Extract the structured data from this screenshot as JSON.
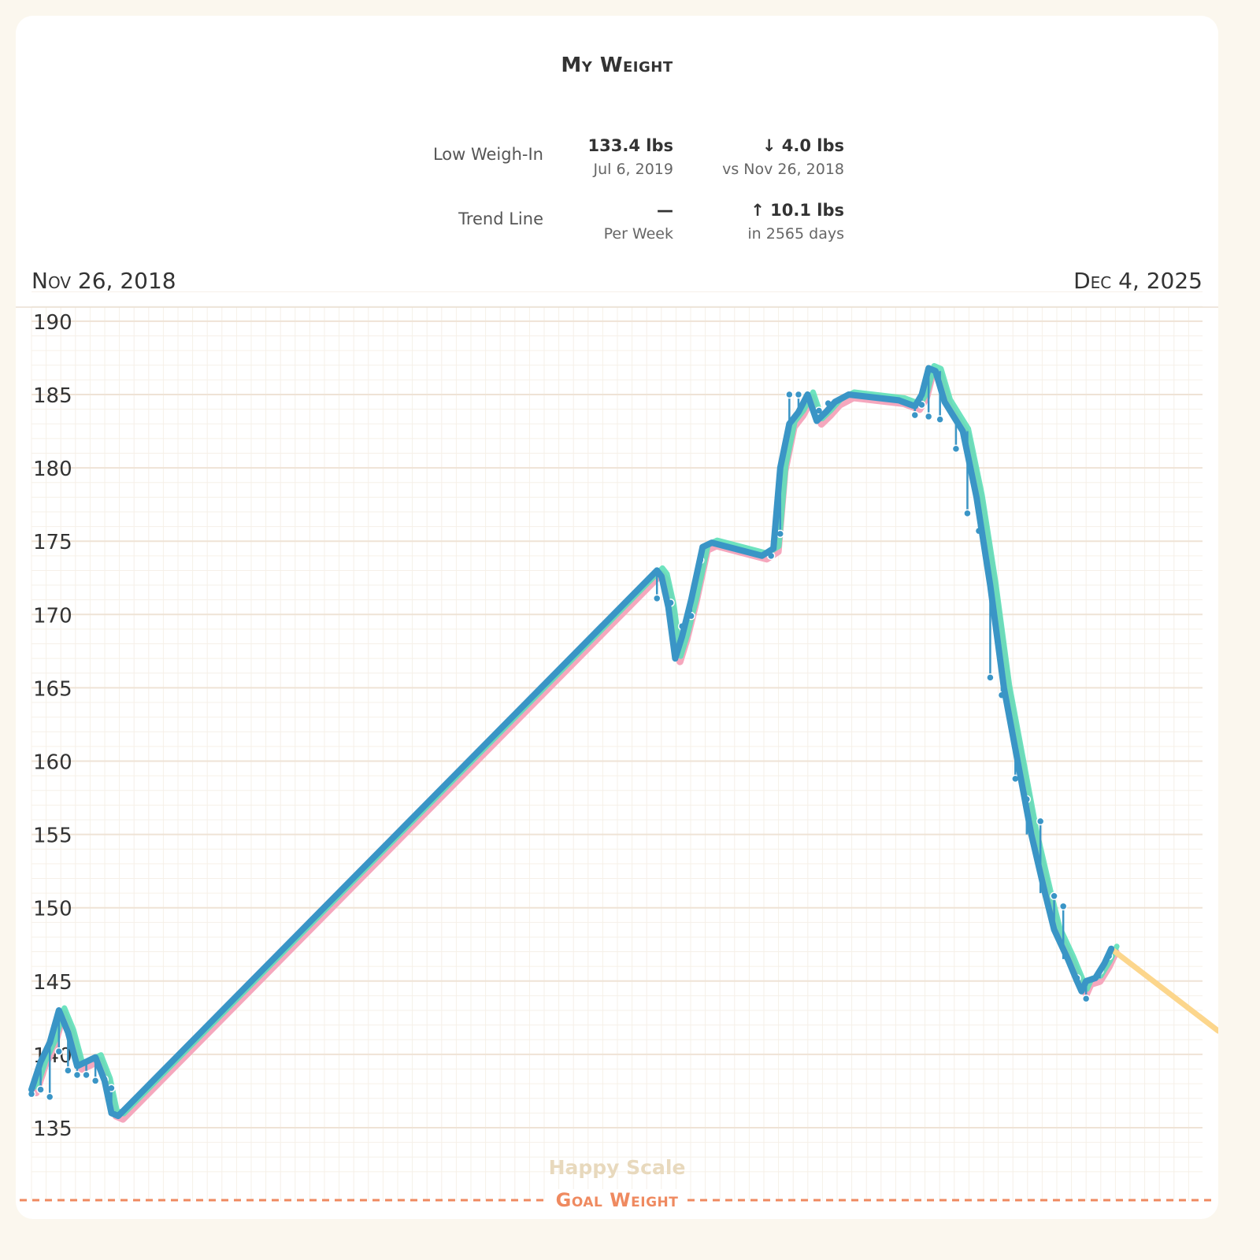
{
  "title": "My Weight",
  "stats": {
    "low": {
      "label": "Low Weigh-In",
      "value": "133.4 lbs",
      "date": "Jul 6, 2019",
      "change": "↓ 4.0 lbs",
      "change_sub": "vs Nov 26, 2018"
    },
    "trend": {
      "label": "Trend Line",
      "value": "—",
      "sub": "Per Week",
      "change": "↑ 10.1 lbs",
      "change_sub": "in 2565 days"
    }
  },
  "range": {
    "start": "Nov 26, 2018",
    "end": "Dec 4, 2025"
  },
  "watermark": "Happy Scale",
  "goal_label": "Goal Weight",
  "colors": {
    "trend": "#3a95c6",
    "weighin": "#3a95c6",
    "up_band": "#f5a7bd",
    "down_band": "#5ee0b8",
    "forecast": "#fcd68c",
    "goal": "#ef8a60",
    "grid": "#efe3d6"
  },
  "chart_data": {
    "type": "line",
    "title": "My Weight",
    "x_range": [
      "2018-11-26",
      "2025-12-04"
    ],
    "ylim": [
      132,
      192
    ],
    "y_ticks": [
      135,
      140,
      145,
      150,
      155,
      160,
      165,
      170,
      175,
      180,
      185,
      190
    ],
    "grid": true,
    "series": [
      {
        "type": "trend",
        "points": [
          [
            0,
            137.6
          ],
          [
            20,
            139.5
          ],
          [
            40,
            140.8
          ],
          [
            60,
            143.0
          ],
          [
            80,
            141.5
          ],
          [
            100,
            139.2
          ],
          [
            120,
            139.5
          ],
          [
            140,
            139.8
          ],
          [
            160,
            138.2
          ],
          [
            175,
            136.0
          ],
          [
            190,
            135.8
          ],
          [
            1370,
            173.0
          ],
          [
            1380,
            172.6
          ],
          [
            1395,
            170.5
          ],
          [
            1410,
            167.0
          ],
          [
            1425,
            168.5
          ],
          [
            1445,
            171.0
          ],
          [
            1470,
            174.6
          ],
          [
            1490,
            174.9
          ],
          [
            1600,
            174.0
          ],
          [
            1625,
            174.5
          ],
          [
            1640,
            180.0
          ],
          [
            1660,
            183.0
          ],
          [
            1680,
            183.8
          ],
          [
            1700,
            185.0
          ],
          [
            1720,
            183.2
          ],
          [
            1740,
            183.8
          ],
          [
            1760,
            184.5
          ],
          [
            1790,
            185.0
          ],
          [
            1900,
            184.6
          ],
          [
            1935,
            184.2
          ],
          [
            1950,
            185.0
          ],
          [
            1965,
            186.8
          ],
          [
            1980,
            186.6
          ],
          [
            2000,
            184.5
          ],
          [
            2020,
            183.5
          ],
          [
            2040,
            182.5
          ],
          [
            2070,
            178.0
          ],
          [
            2100,
            172.0
          ],
          [
            2130,
            165.0
          ],
          [
            2160,
            160.0
          ],
          [
            2190,
            155.0
          ],
          [
            2220,
            151.0
          ],
          [
            2240,
            148.5
          ],
          [
            2270,
            146.5
          ],
          [
            2290,
            145.0
          ],
          [
            2300,
            144.3
          ],
          [
            2310,
            145.0
          ],
          [
            2330,
            145.2
          ],
          [
            2350,
            146.2
          ],
          [
            2365,
            147.2
          ]
        ]
      },
      {
        "type": "weigh-ins",
        "points": [
          [
            0,
            137.3
          ],
          [
            20,
            137.6
          ],
          [
            40,
            137.1
          ],
          [
            60,
            140.2
          ],
          [
            80,
            138.9
          ],
          [
            100,
            138.6
          ],
          [
            120,
            138.6
          ],
          [
            140,
            138.2
          ],
          [
            160,
            138.3
          ],
          [
            175,
            137.7
          ],
          [
            1370,
            171.1
          ],
          [
            1400,
            170.8
          ],
          [
            1425,
            169.2
          ],
          [
            1445,
            169.9
          ],
          [
            1465,
            173.7
          ],
          [
            1620,
            174.0
          ],
          [
            1640,
            175.5
          ],
          [
            1660,
            185.0
          ],
          [
            1680,
            185.0
          ],
          [
            1700,
            184.7
          ],
          [
            1725,
            183.9
          ],
          [
            1745,
            184.4
          ],
          [
            1935,
            183.6
          ],
          [
            1950,
            184.3
          ],
          [
            1965,
            183.5
          ],
          [
            1990,
            183.3
          ],
          [
            2025,
            181.3
          ],
          [
            2050,
            176.9
          ],
          [
            2075,
            175.7
          ],
          [
            2100,
            165.7
          ],
          [
            2125,
            164.5
          ],
          [
            2155,
            158.8
          ],
          [
            2180,
            157.4
          ],
          [
            2210,
            155.9
          ],
          [
            2240,
            150.8
          ],
          [
            2260,
            150.1
          ],
          [
            2290,
            145.2
          ],
          [
            2310,
            143.8
          ],
          [
            2340,
            145.7
          ],
          [
            2360,
            146.7
          ]
        ]
      }
    ]
  }
}
